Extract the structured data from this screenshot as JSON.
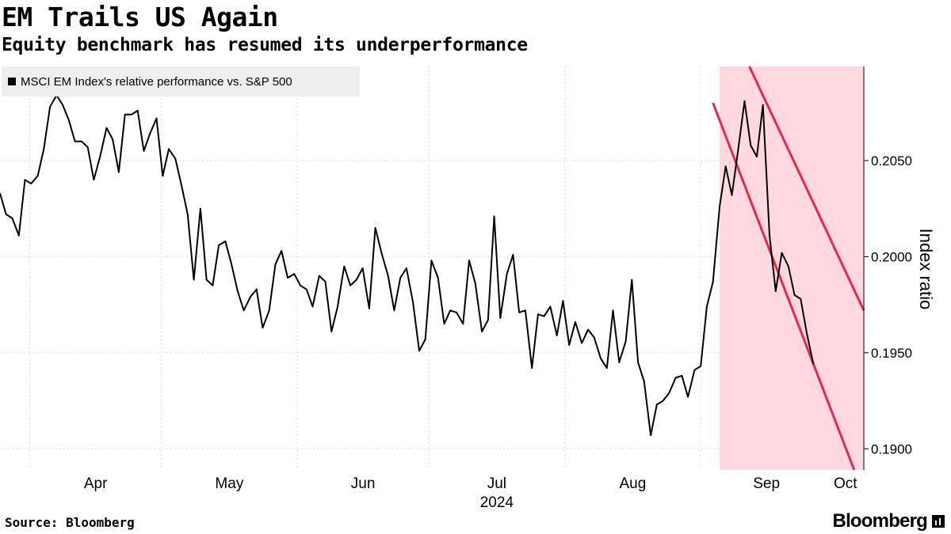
{
  "header": {
    "title": "EM Trails US Again",
    "subtitle": "Equity benchmark has resumed its underperformance"
  },
  "footer": {
    "source": "Source: Bloomberg",
    "brand": "Bloomberg"
  },
  "colors": {
    "line": "#000000",
    "channel_fill": "#ffd9df",
    "channel_line": "#e8274b",
    "grid": "#d9d9d9",
    "legend_bg": "#eeeeee"
  },
  "chart_data": {
    "type": "line",
    "title": "EM Trails US Again",
    "subtitle": "Equity benchmark has resumed its underperformance",
    "xlabel": "2024",
    "ylabel": "Index ratio",
    "ylim": [
      0.1889,
      0.2099
    ],
    "yticks": [
      0.19,
      0.195,
      0.2,
      0.205
    ],
    "ytick_labels": [
      "0.1900",
      "0.1950",
      "0.2000",
      "0.2050"
    ],
    "xticks": [
      {
        "label": "Apr",
        "day": 0
      },
      {
        "label": "May",
        "day": 30
      },
      {
        "label": "Jun",
        "day": 61
      },
      {
        "label": "Jul",
        "day": 91
      },
      {
        "label": "Aug",
        "day": 122
      },
      {
        "label": "Sep",
        "day": 153
      },
      {
        "label": "Oct",
        "day": 183
      }
    ],
    "x_range_days": [
      -6.8,
      190.2
    ],
    "grid": true,
    "legend": [
      {
        "label": "MSCI EM Index's relative performance vs. S&P 500",
        "position": "top-left"
      }
    ],
    "series": [
      {
        "name": "MSCI EM Index's relative performance vs. S&P 500",
        "points": [
          [
            -6.8,
            0.2033
          ],
          [
            -5.4,
            0.2022
          ],
          [
            -4.0,
            0.202
          ],
          [
            -2.5,
            0.2011
          ],
          [
            -1.1,
            0.204
          ],
          [
            0.3,
            0.2038
          ],
          [
            1.8,
            0.2042
          ],
          [
            3.2,
            0.2056
          ],
          [
            4.6,
            0.2078
          ],
          [
            6.1,
            0.2084
          ],
          [
            7.5,
            0.2079
          ],
          [
            8.9,
            0.2071
          ],
          [
            10.3,
            0.206
          ],
          [
            11.8,
            0.206
          ],
          [
            13.2,
            0.2057
          ],
          [
            14.6,
            0.204
          ],
          [
            16.0,
            0.2052
          ],
          [
            17.5,
            0.2067
          ],
          [
            18.9,
            0.2061
          ],
          [
            20.3,
            0.2044
          ],
          [
            21.7,
            0.2074
          ],
          [
            23.2,
            0.2074
          ],
          [
            24.6,
            0.2076
          ],
          [
            26.0,
            0.2055
          ],
          [
            27.4,
            0.2064
          ],
          [
            28.9,
            0.2072
          ],
          [
            30.3,
            0.2042
          ],
          [
            31.7,
            0.2056
          ],
          [
            33.2,
            0.2051
          ],
          [
            34.6,
            0.2037
          ],
          [
            36.0,
            0.2022
          ],
          [
            37.4,
            0.1988
          ],
          [
            38.9,
            0.2025
          ],
          [
            40.3,
            0.1988
          ],
          [
            41.7,
            0.1985
          ],
          [
            43.1,
            0.2006
          ],
          [
            44.6,
            0.2008
          ],
          [
            46.0,
            0.1996
          ],
          [
            47.4,
            0.1982
          ],
          [
            48.8,
            0.1972
          ],
          [
            50.3,
            0.1979
          ],
          [
            51.7,
            0.1983
          ],
          [
            53.1,
            0.1963
          ],
          [
            54.6,
            0.1972
          ],
          [
            56.0,
            0.1996
          ],
          [
            57.4,
            0.2003
          ],
          [
            58.8,
            0.1989
          ],
          [
            60.3,
            0.1991
          ],
          [
            61.7,
            0.1985
          ],
          [
            63.1,
            0.1983
          ],
          [
            64.5,
            0.1974
          ],
          [
            66.0,
            0.199
          ],
          [
            67.4,
            0.1987
          ],
          [
            68.8,
            0.1961
          ],
          [
            70.2,
            0.1974
          ],
          [
            71.7,
            0.1995
          ],
          [
            73.1,
            0.1985
          ],
          [
            74.5,
            0.1988
          ],
          [
            75.9,
            0.1994
          ],
          [
            77.4,
            0.1973
          ],
          [
            78.8,
            0.2015
          ],
          [
            80.2,
            0.2002
          ],
          [
            81.7,
            0.199
          ],
          [
            83.1,
            0.1972
          ],
          [
            84.5,
            0.1989
          ],
          [
            85.9,
            0.1994
          ],
          [
            87.4,
            0.1976
          ],
          [
            88.8,
            0.1951
          ],
          [
            90.2,
            0.1957
          ],
          [
            91.6,
            0.1998
          ],
          [
            93.1,
            0.1989
          ],
          [
            94.5,
            0.1965
          ],
          [
            95.9,
            0.1972
          ],
          [
            97.3,
            0.1971
          ],
          [
            98.8,
            0.1965
          ],
          [
            100.2,
            0.1998
          ],
          [
            101.6,
            0.1986
          ],
          [
            103.1,
            0.1961
          ],
          [
            104.5,
            0.1967
          ],
          [
            105.9,
            0.2021
          ],
          [
            107.3,
            0.1968
          ],
          [
            108.8,
            0.1991
          ],
          [
            110.2,
            0.2001
          ],
          [
            111.6,
            0.1971
          ],
          [
            113.0,
            0.1972
          ],
          [
            114.5,
            0.1942
          ],
          [
            115.9,
            0.197
          ],
          [
            117.3,
            0.1969
          ],
          [
            118.7,
            0.1974
          ],
          [
            120.2,
            0.1959
          ],
          [
            121.6,
            0.1977
          ],
          [
            123.0,
            0.1954
          ],
          [
            124.4,
            0.1966
          ],
          [
            125.9,
            0.1955
          ],
          [
            127.3,
            0.1962
          ],
          [
            128.7,
            0.1958
          ],
          [
            130.2,
            0.1947
          ],
          [
            131.6,
            0.1942
          ],
          [
            133.0,
            0.1972
          ],
          [
            134.4,
            0.1945
          ],
          [
            135.9,
            0.1956
          ],
          [
            137.3,
            0.1988
          ],
          [
            138.7,
            0.1945
          ],
          [
            140.1,
            0.1935
          ],
          [
            141.6,
            0.1907
          ],
          [
            143.0,
            0.1923
          ],
          [
            144.4,
            0.1925
          ],
          [
            145.8,
            0.1929
          ],
          [
            147.3,
            0.1937
          ],
          [
            148.7,
            0.1938
          ],
          [
            150.1,
            0.1927
          ],
          [
            151.6,
            0.1941
          ],
          [
            153.0,
            0.1943
          ],
          [
            154.4,
            0.1974
          ],
          [
            155.8,
            0.1987
          ],
          [
            157.3,
            0.2026
          ],
          [
            158.7,
            0.2047
          ],
          [
            160.1,
            0.2032
          ],
          [
            161.5,
            0.2055
          ],
          [
            163.0,
            0.2081
          ],
          [
            164.4,
            0.2058
          ],
          [
            165.8,
            0.2052
          ],
          [
            167.2,
            0.2079
          ],
          [
            168.7,
            0.2011
          ],
          [
            170.1,
            0.1982
          ],
          [
            171.5,
            0.2002
          ],
          [
            173.0,
            0.1995
          ],
          [
            174.4,
            0.198
          ],
          [
            175.8,
            0.1978
          ],
          [
            177.2,
            0.196
          ],
          [
            178.7,
            0.1944
          ]
        ]
      }
    ],
    "channel": {
      "shaded_from_day": 157.3,
      "upper": [
        [
          164.1,
          0.2099
        ],
        [
          190.2,
          0.1972
        ]
      ],
      "lower": [
        [
          155.8,
          0.208
        ],
        [
          188.0,
          0.1889
        ]
      ]
    }
  }
}
